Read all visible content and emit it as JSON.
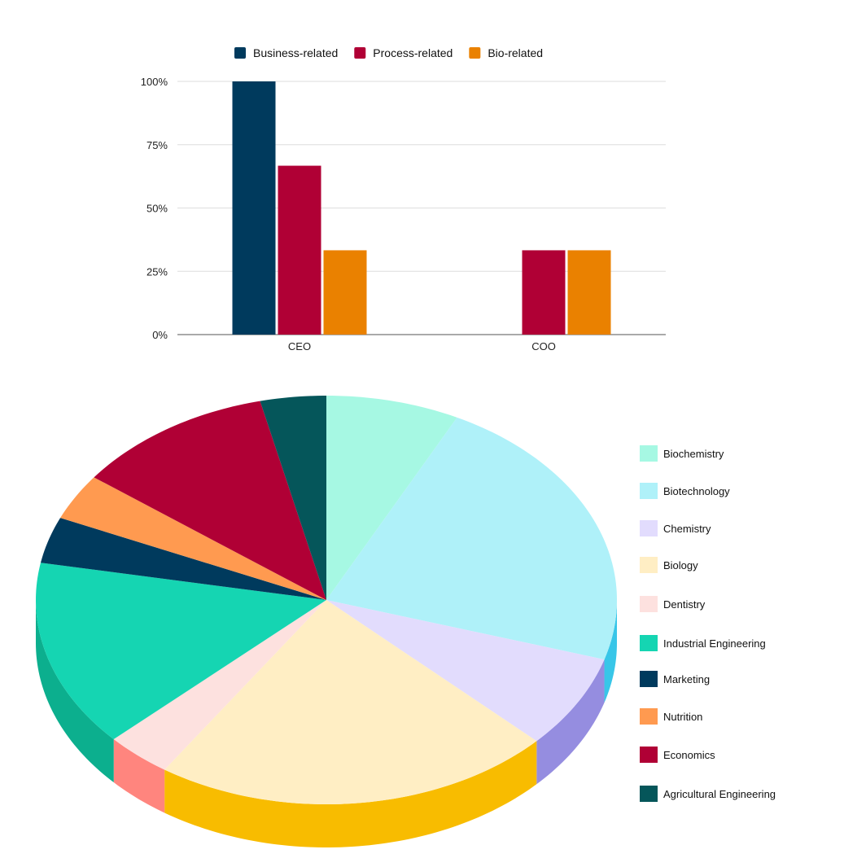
{
  "chart_data": [
    {
      "type": "bar",
      "title": "",
      "xlabel": "",
      "ylabel": "",
      "categories": [
        "CEO",
        "COO"
      ],
      "ylim": [
        0,
        100
      ],
      "yticks": [
        "0%",
        "25%",
        "50%",
        "75%",
        "100%"
      ],
      "ytick_values": [
        0,
        25,
        50,
        75,
        100
      ],
      "grid": true,
      "legend_position": "top",
      "series": [
        {
          "name": "Business-related",
          "values": [
            100,
            0
          ],
          "color": "#003a5d"
        },
        {
          "name": "Process-related",
          "values": [
            66.7,
            33.3
          ],
          "color": "#b00035"
        },
        {
          "name": "Bio-related",
          "values": [
            33.3,
            33.3
          ],
          "color": "#ea8100"
        }
      ]
    },
    {
      "type": "pie",
      "title": "",
      "style": "3d",
      "legend_position": "right",
      "slices": [
        {
          "label": "Biochemistry",
          "value": 7.7,
          "color": "#a6f8e3",
          "side_color": "#7fe3c8"
        },
        {
          "label": "Biotechnology",
          "value": 23.1,
          "color": "#aff1f9",
          "side_color": "#38c6e8"
        },
        {
          "label": "Chemistry",
          "value": 7.7,
          "color": "#e2dcfd",
          "side_color": "#958de0"
        },
        {
          "label": "Biology",
          "value": 23.1,
          "color": "#ffeec4",
          "side_color": "#f8bc00"
        },
        {
          "label": "Dentistry",
          "value": 3.8,
          "color": "#fde1df",
          "side_color": "#ff857e"
        },
        {
          "label": "Industrial Engineering",
          "value": 15.4,
          "color": "#15d5b2",
          "side_color": "#0caf8e"
        },
        {
          "label": "Marketing",
          "value": 3.8,
          "color": "#003a5d",
          "side_color": "#002b46"
        },
        {
          "label": "Nutrition",
          "value": 3.8,
          "color": "#ff9a50",
          "side_color": "#e07f38"
        },
        {
          "label": "Economics",
          "value": 11.5,
          "color": "#b00035",
          "side_color": "#8c002a"
        },
        {
          "label": "Agricultural Engineering",
          "value": 3.8,
          "color": "#05565a",
          "side_color": "#034043"
        }
      ]
    }
  ]
}
